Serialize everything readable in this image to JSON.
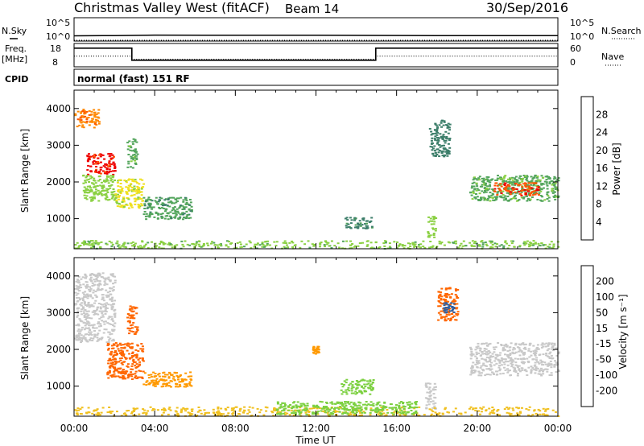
{
  "header": {
    "title": "Christmas Valley West (fitACF)",
    "beam": "Beam 14",
    "date": "30/Sep/2016"
  },
  "left_labels": {
    "nsky": "N.Sky",
    "freq_line1": "Freq.",
    "freq_line2": "[MHz]",
    "cpid": "CPID"
  },
  "right_labels": {
    "nsearch": "N.Search",
    "nave": "Nave"
  },
  "cpid_text": "normal (fast) 151 RF",
  "xaxis_title": "Time UT",
  "chart_data": [
    {
      "type": "line",
      "panel": "noise",
      "left_axis_ticks": [
        "10^5",
        "10^0"
      ],
      "right_axis_ticks": [
        "10^5",
        "10^0"
      ],
      "series": [
        {
          "name": "N.Sky",
          "x": [
            "00:00",
            "02:00",
            "04:00",
            "08:00",
            "12:00",
            "15:00",
            "18:00",
            "22:00",
            "24:00"
          ],
          "values": [
            8,
            9,
            12,
            11,
            11,
            10,
            9,
            9,
            9
          ]
        },
        {
          "name": "N.Search",
          "x": [
            "00:00",
            "24:00"
          ],
          "values": [
            1,
            1
          ]
        }
      ]
    },
    {
      "type": "line",
      "panel": "freq-nave",
      "left_ylim": [
        8,
        18
      ],
      "left_ticks": [
        "18",
        "8"
      ],
      "right_ylim": [
        0,
        60
      ],
      "right_ticks": [
        "60",
        "0"
      ],
      "series": [
        {
          "name": "Freq.",
          "x": [
            "00:00",
            "02:52",
            "02:52",
            "14:58",
            "14:58",
            "24:00"
          ],
          "values": [
            16.5,
            16.5,
            10.5,
            10.5,
            16.5,
            16.5
          ]
        },
        {
          "name": "Nave",
          "x": [
            "00:00",
            "02:52",
            "02:52",
            "14:58",
            "14:58",
            "24:00"
          ],
          "values": [
            27,
            27,
            18,
            18,
            27,
            27
          ]
        }
      ]
    },
    {
      "type": "heatmap",
      "panel": "power",
      "ylabel": "Slant Range [km]",
      "xlabel": "Time UT",
      "x_ticks": [
        "00:00",
        "04:00",
        "08:00",
        "12:00",
        "16:00",
        "20:00",
        "00:00"
      ],
      "y_ticks": [
        "1000",
        "2000",
        "3000",
        "4000"
      ],
      "ylim": [
        180,
        4500
      ],
      "colorbar_label": "Power [dB]",
      "colorbar_ticks": [
        "4",
        "8",
        "12",
        "16",
        "20",
        "24",
        "28"
      ],
      "colors": [
        "#0000ff",
        "#1a5aa0",
        "#3c7e6a",
        "#53a55c",
        "#8ad042",
        "#f0e020",
        "#ffbb00",
        "#ff8800",
        "#ff5500",
        "#ee0000"
      ],
      "patches": [
        {
          "t0": 0.0,
          "t1": 1.2,
          "r0": 3500,
          "r1": 4000,
          "value": 24
        },
        {
          "t0": 0.6,
          "t1": 2.0,
          "r0": 2200,
          "r1": 2800,
          "value": 28
        },
        {
          "t0": 0.4,
          "t1": 2.0,
          "r0": 1500,
          "r1": 2200,
          "value": 14
        },
        {
          "t0": 2.0,
          "t1": 3.4,
          "r0": 1300,
          "r1": 2100,
          "value": 16
        },
        {
          "t0": 3.4,
          "t1": 5.8,
          "r0": 1000,
          "r1": 1600,
          "value": 10
        },
        {
          "t0": 2.6,
          "t1": 3.1,
          "r0": 2400,
          "r1": 3200,
          "value": 12
        },
        {
          "t0": 13.4,
          "t1": 14.8,
          "r0": 750,
          "r1": 1050,
          "value": 9
        },
        {
          "t0": 17.5,
          "t1": 17.9,
          "r0": 500,
          "r1": 1100,
          "value": 14
        },
        {
          "t0": 17.6,
          "t1": 18.6,
          "r0": 2700,
          "r1": 3700,
          "value": 8
        },
        {
          "t0": 19.6,
          "t1": 24.0,
          "r0": 1500,
          "r1": 2200,
          "value": 12
        },
        {
          "t0": 20.8,
          "t1": 23.0,
          "r0": 1650,
          "r1": 2000,
          "value": 27
        },
        {
          "t0": 0.0,
          "t1": 24.0,
          "r0": 200,
          "r1": 420,
          "value": 13
        }
      ]
    },
    {
      "type": "heatmap",
      "panel": "velocity",
      "ylabel": "Slant Range [km]",
      "xlabel": "Time UT",
      "x_ticks": [
        "00:00",
        "04:00",
        "08:00",
        "12:00",
        "16:00",
        "20:00",
        "00:00"
      ],
      "y_ticks": [
        "1000",
        "2000",
        "3000",
        "4000"
      ],
      "ylim": [
        180,
        4500
      ],
      "colorbar_label": "Velocity [m s⁻¹]",
      "colorbar_ticks": [
        "200",
        "100",
        "50",
        "15",
        "-15",
        "-50",
        "-100",
        "-200"
      ],
      "colors": [
        "#0000cc",
        "#3060a0",
        "#3a8a50",
        "#7cd040",
        "#c8c8c8",
        "#f0c020",
        "#ff9900",
        "#ff6600",
        "#ee0000"
      ],
      "patches": [
        {
          "t0": 0.0,
          "t1": 2.0,
          "r0": 2200,
          "r1": 4100,
          "value": 0
        },
        {
          "t0": 1.6,
          "t1": 3.4,
          "r0": 1200,
          "r1": 2200,
          "value": -170
        },
        {
          "t0": 3.4,
          "t1": 5.8,
          "r0": 1000,
          "r1": 1400,
          "value": -80
        },
        {
          "t0": 2.6,
          "t1": 3.1,
          "r0": 2400,
          "r1": 3200,
          "value": -120
        },
        {
          "t0": 13.2,
          "t1": 14.8,
          "r0": 800,
          "r1": 1200,
          "value": 40
        },
        {
          "t0": 11.8,
          "t1": 12.1,
          "r0": 1900,
          "r1": 2100,
          "value": -60
        },
        {
          "t0": 17.4,
          "t1": 17.9,
          "r0": 400,
          "r1": 1100,
          "value": 0
        },
        {
          "t0": 18.0,
          "t1": 19.0,
          "r0": 2800,
          "r1": 3700,
          "value": -200
        },
        {
          "t0": 18.3,
          "t1": 18.8,
          "r0": 3000,
          "r1": 3300,
          "value": 180
        },
        {
          "t0": 19.6,
          "t1": 24.0,
          "r0": 1300,
          "r1": 2200,
          "value": 0
        },
        {
          "t0": 0.0,
          "t1": 24.0,
          "r0": 200,
          "r1": 450,
          "value": -30
        },
        {
          "t0": 10.0,
          "t1": 17.0,
          "r0": 250,
          "r1": 600,
          "value": 30
        }
      ]
    }
  ]
}
